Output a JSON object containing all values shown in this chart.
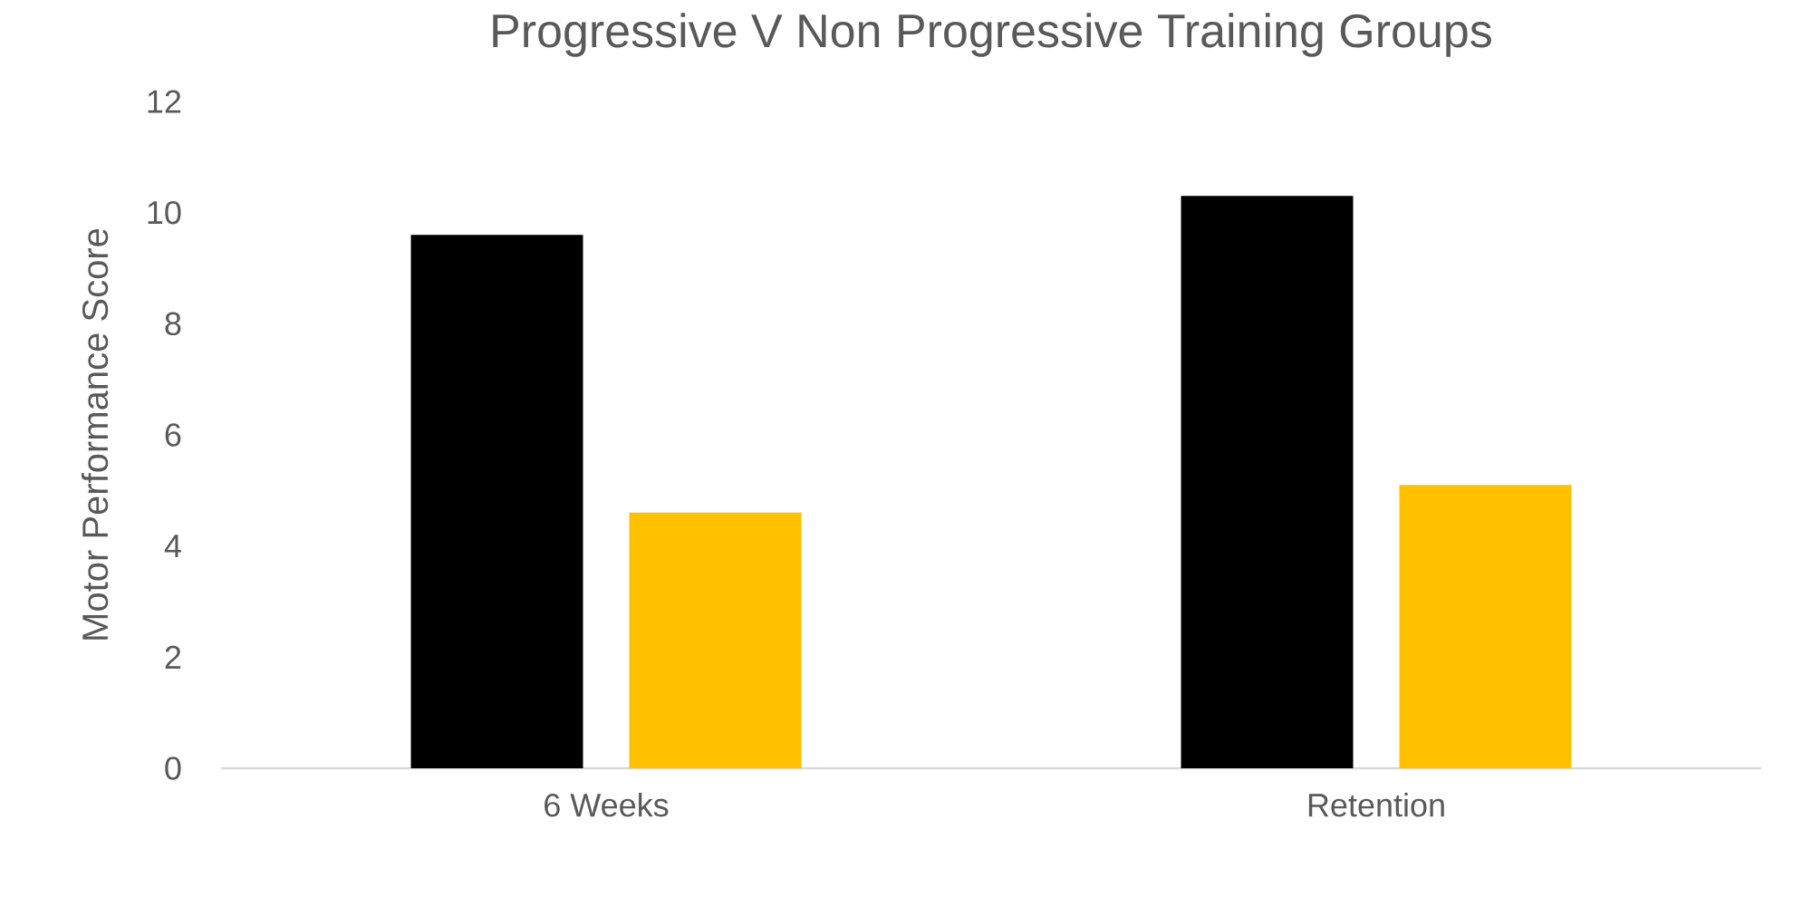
{
  "chart_data": {
    "type": "bar",
    "title": "Progressive V Non Progressive Training Groups",
    "ylabel": "Motor Performance Score",
    "categories": [
      "6 Weeks",
      "Retention"
    ],
    "series": [
      {
        "color": "#000000",
        "values": [
          9.6,
          10.3
        ]
      },
      {
        "color": "#ffc000",
        "values": [
          4.6,
          5.1
        ]
      }
    ],
    "ylim": [
      0,
      12
    ],
    "yticks": [
      0,
      2,
      4,
      6,
      8,
      10,
      12
    ]
  }
}
